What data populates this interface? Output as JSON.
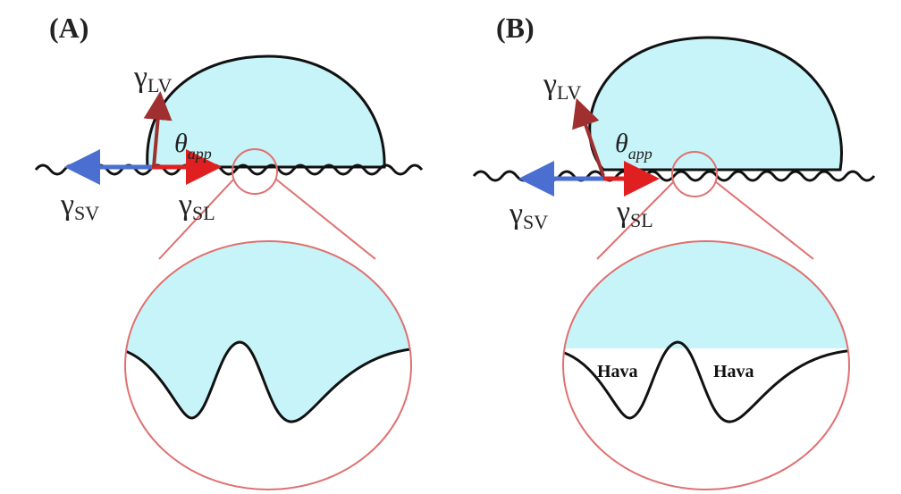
{
  "panels": [
    {
      "label": "(A)",
      "terms": [
        {
          "main": "γ",
          "sub": "LV"
        },
        {
          "main": "θ",
          "sub": "app"
        },
        {
          "main": "γ",
          "sub": "SV"
        },
        {
          "main": "γ",
          "sub": "SL"
        }
      ]
    },
    {
      "label": "(B)",
      "terms": [
        {
          "main": "γ",
          "sub": "LV"
        },
        {
          "main": "θ",
          "sub": "app"
        },
        {
          "main": "γ",
          "sub": "SV"
        },
        {
          "main": "γ",
          "sub": "SL"
        }
      ],
      "air_labels": [
        "Hava",
        "Hava"
      ]
    }
  ]
}
